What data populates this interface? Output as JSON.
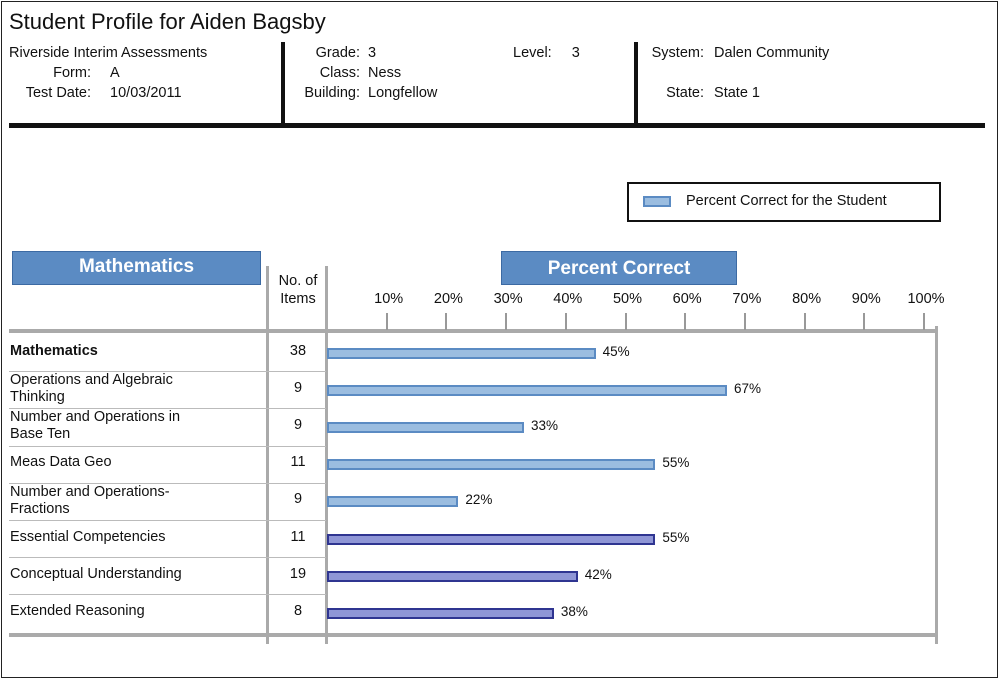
{
  "header": {
    "title": "Student Profile for Aiden Bagsby",
    "assessment": "Riverside Interim Assessments",
    "form_label": "Form:",
    "form_value": "A",
    "test_date_label": "Test Date:",
    "test_date_value": "10/03/2011",
    "grade_label": "Grade:",
    "grade_value": "3",
    "class_label": "Class:",
    "class_value": "Ness",
    "building_label": "Building:",
    "building_value": "Longfellow",
    "level_label": "Level:",
    "level_value": "3",
    "system_label": "System:",
    "system_value": "Dalen Community",
    "state_label": "State:",
    "state_value": "State 1"
  },
  "colors": {
    "banner": "#5b8bc3",
    "bar_light_fill": "#9bbde0",
    "bar_light_edge": "#5b8bc3",
    "bar_dark_fill": "#8f96d6",
    "bar_dark_edge": "#2f3591"
  },
  "chart_data": {
    "type": "bar",
    "orientation": "horizontal",
    "subject_banner": "Mathematics",
    "axis_banner": "Percent Correct",
    "items_header": "No. of Items",
    "legend": "Percent Correct for the Student",
    "legend_position": "top-right",
    "xlim": [
      0,
      100
    ],
    "ticks": [
      "10%",
      "20%",
      "30%",
      "40%",
      "50%",
      "60%",
      "70%",
      "80%",
      "90%",
      "100%"
    ],
    "categories": [
      "Mathematics",
      "Operations and Algebraic Thinking",
      "Number and Operations in Base Ten",
      "Meas Data Geo",
      "Number and Operations-Fractions",
      "Essential Competencies",
      "Conceptual Understanding",
      "Extended Reasoning"
    ],
    "category_lines": [
      [
        "Mathematics"
      ],
      [
        "Operations and Algebraic",
        "Thinking"
      ],
      [
        "Number and Operations in",
        "Base Ten"
      ],
      [
        "Meas Data Geo"
      ],
      [
        "Number and Operations-",
        "Fractions"
      ],
      [
        "Essential Competencies"
      ],
      [
        "Conceptual Understanding"
      ],
      [
        "Extended Reasoning"
      ]
    ],
    "items": [
      38,
      9,
      9,
      11,
      9,
      11,
      19,
      8
    ],
    "values": [
      45,
      67,
      33,
      55,
      22,
      55,
      42,
      38
    ],
    "value_labels": [
      "45%",
      "67%",
      "33%",
      "55%",
      "22%",
      "55%",
      "42%",
      "38%"
    ],
    "bar_style": [
      "light",
      "light",
      "light",
      "light",
      "light",
      "dark",
      "dark",
      "dark"
    ]
  }
}
